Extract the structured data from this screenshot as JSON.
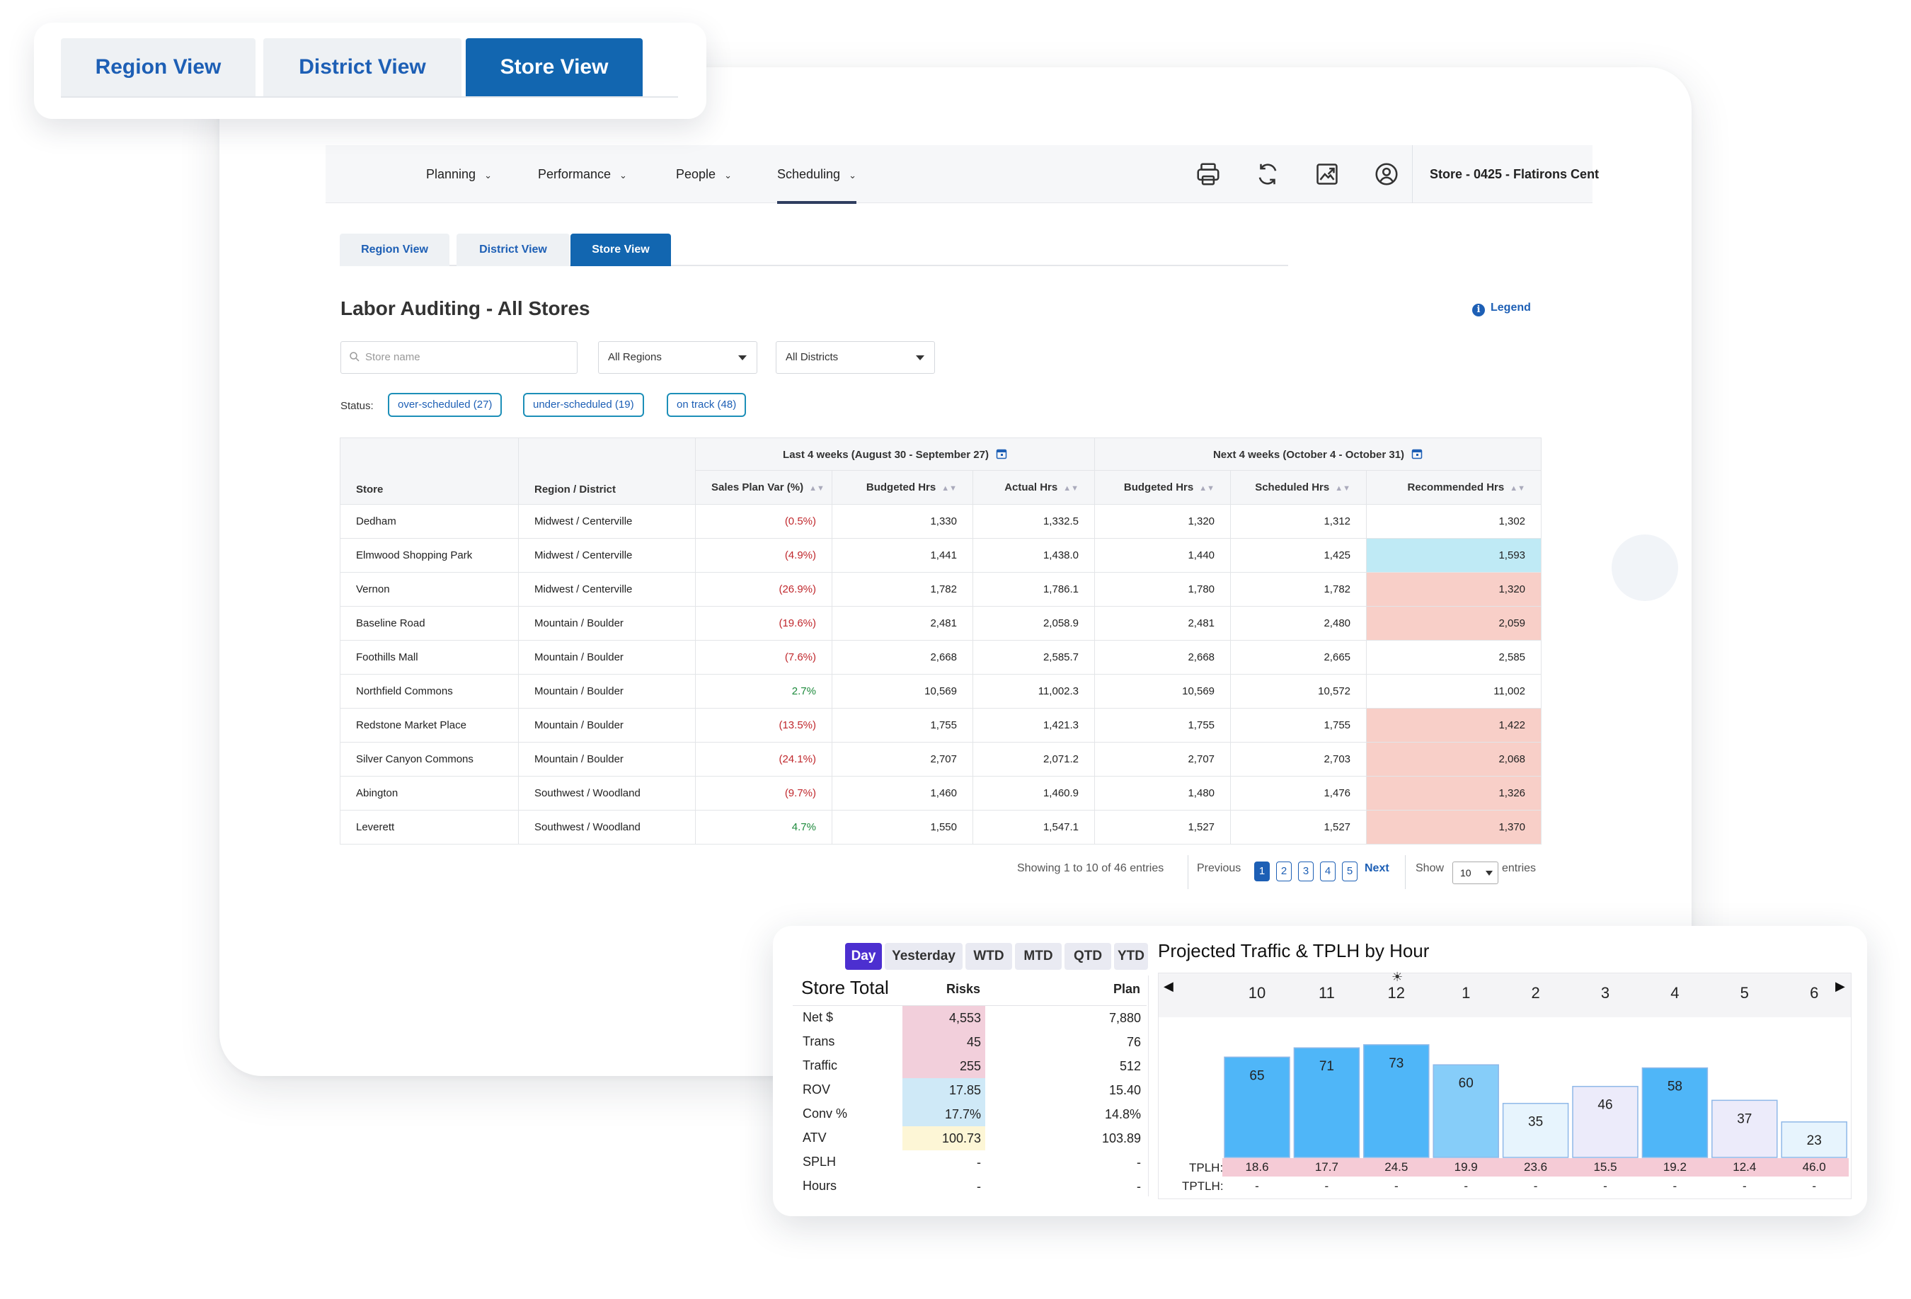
{
  "top_tabs": [
    "Region View",
    "District View",
    "Store View"
  ],
  "nav": {
    "items": [
      "Planning",
      "Performance",
      "People",
      "Scheduling"
    ],
    "active": "Scheduling",
    "icons": [
      "printer-icon",
      "refresh-icon",
      "image-export-icon",
      "user-account-icon"
    ],
    "store": "Store - 0425 - Flatirons Cent"
  },
  "view_tabs": [
    "Region View",
    "District View",
    "Store View"
  ],
  "title": "Labor Auditing - All Stores",
  "legend_label": "Legend",
  "filters": {
    "search_placeholder": "Store name",
    "region": "All Regions",
    "district": "All Districts"
  },
  "status": {
    "label": "Status:",
    "chips": [
      "over-scheduled (27)",
      "under-scheduled (19)",
      "on track (48)"
    ]
  },
  "table": {
    "group_last": "Last 4 weeks (August 30 - September 27)",
    "group_next": "Next 4 weeks (October 4 - October 31)",
    "columns": [
      "Store",
      "Region / District",
      "Sales Plan Var (%)",
      "Budgeted Hrs",
      "Actual Hrs",
      "Budgeted Hrs",
      "Scheduled Hrs",
      "Recommended Hrs"
    ],
    "rows": [
      {
        "store": "Dedham",
        "region": "Midwest / Centerville",
        "var": "(0.5%)",
        "var_sign": "neg",
        "bud": "1,330",
        "act": "1,332.5",
        "nbud": "1,320",
        "sched": "1,312",
        "rec": "1,302",
        "rec_flag": "none"
      },
      {
        "store": "Elmwood Shopping Park",
        "region": "Midwest / Centerville",
        "var": "(4.9%)",
        "var_sign": "neg",
        "bud": "1,441",
        "act": "1,438.0",
        "nbud": "1,440",
        "sched": "1,425",
        "rec": "1,593",
        "rec_flag": "blue"
      },
      {
        "store": "Vernon",
        "region": "Midwest / Centerville",
        "var": "(26.9%)",
        "var_sign": "neg",
        "bud": "1,782",
        "act": "1,786.1",
        "nbud": "1,780",
        "sched": "1,782",
        "rec": "1,320",
        "rec_flag": "red"
      },
      {
        "store": "Baseline Road",
        "region": "Mountain / Boulder",
        "var": "(19.6%)",
        "var_sign": "neg",
        "bud": "2,481",
        "act": "2,058.9",
        "nbud": "2,481",
        "sched": "2,480",
        "rec": "2,059",
        "rec_flag": "red"
      },
      {
        "store": "Foothills Mall",
        "region": "Mountain / Boulder",
        "var": "(7.6%)",
        "var_sign": "neg",
        "bud": "2,668",
        "act": "2,585.7",
        "nbud": "2,668",
        "sched": "2,665",
        "rec": "2,585",
        "rec_flag": "none"
      },
      {
        "store": "Northfield Commons",
        "region": "Mountain / Boulder",
        "var": "2.7%",
        "var_sign": "pos",
        "bud": "10,569",
        "act": "11,002.3",
        "nbud": "10,569",
        "sched": "10,572",
        "rec": "11,002",
        "rec_flag": "none"
      },
      {
        "store": "Redstone Market Place",
        "region": "Mountain / Boulder",
        "var": "(13.5%)",
        "var_sign": "neg",
        "bud": "1,755",
        "act": "1,421.3",
        "nbud": "1,755",
        "sched": "1,755",
        "rec": "1,422",
        "rec_flag": "red"
      },
      {
        "store": "Silver Canyon Commons",
        "region": "Mountain / Boulder",
        "var": "(24.1%)",
        "var_sign": "neg",
        "bud": "2,707",
        "act": "2,071.2",
        "nbud": "2,707",
        "sched": "2,703",
        "rec": "2,068",
        "rec_flag": "red"
      },
      {
        "store": "Abington",
        "region": "Southwest / Woodland",
        "var": "(9.7%)",
        "var_sign": "neg",
        "bud": "1,460",
        "act": "1,460.9",
        "nbud": "1,480",
        "sched": "1,476",
        "rec": "1,326",
        "rec_flag": "red"
      },
      {
        "store": "Leverett",
        "region": "Southwest / Woodland",
        "var": "4.7%",
        "var_sign": "pos",
        "bud": "1,550",
        "act": "1,547.1",
        "nbud": "1,527",
        "sched": "1,527",
        "rec": "1,370",
        "rec_flag": "red"
      }
    ]
  },
  "pagination": {
    "summary": "Showing 1 to 10 of 46 entries",
    "previous": "Previous",
    "pages": [
      "1",
      "2",
      "3",
      "4",
      "5"
    ],
    "current": "1",
    "next": "Next",
    "show": "Show",
    "page_size": "10",
    "entries": "entries"
  },
  "widget": {
    "periods": [
      "Day",
      "Yesterday",
      "WTD",
      "MTD",
      "QTD",
      "YTD"
    ],
    "active_period": "Day",
    "store_total": "Store Total",
    "risks_header": "Risks",
    "plan_header": "Plan",
    "metrics": [
      {
        "label": "Net $",
        "risk": "4,553",
        "plan": "7,880",
        "tone": "pink"
      },
      {
        "label": "Trans",
        "risk": "45",
        "plan": "76",
        "tone": "pink"
      },
      {
        "label": "Traffic",
        "risk": "255",
        "plan": "512",
        "tone": "pink"
      },
      {
        "label": "ROV",
        "risk": "17.85",
        "plan": "15.40",
        "tone": "blue"
      },
      {
        "label": "Conv %",
        "risk": "17.7%",
        "plan": "14.8%",
        "tone": "blue"
      },
      {
        "label": "ATV",
        "risk": "100.73",
        "plan": "103.89",
        "tone": "yellow"
      },
      {
        "label": "SPLH",
        "risk": "-",
        "plan": "-",
        "tone": "none"
      },
      {
        "label": "Hours",
        "risk": "-",
        "plan": "-",
        "tone": "none"
      }
    ]
  },
  "chart_data": {
    "type": "bar",
    "title": "Projected Traffic & TPLH by Hour",
    "categories": [
      "10",
      "11",
      "12",
      "1",
      "2",
      "3",
      "4",
      "5",
      "6"
    ],
    "values": [
      65,
      71,
      73,
      60,
      35,
      46,
      58,
      37,
      23
    ],
    "tones": [
      "blue",
      "blue",
      "blue",
      "light-blue",
      "pale-blue",
      "lavender",
      "blue",
      "lavender",
      "pale-blue"
    ],
    "ylim": [
      0,
      100
    ],
    "tplh_label": "TPLH:",
    "tplh": [
      "18.6",
      "17.7",
      "24.5",
      "19.9",
      "23.6",
      "15.5",
      "19.2",
      "12.4",
      "46.0"
    ],
    "tptlh_label": "TPTLH:",
    "tptlh": [
      "-",
      "-",
      "-",
      "-",
      "-",
      "-",
      "-",
      "-",
      "-"
    ]
  },
  "colors": {
    "brand_blue": "#1266b0",
    "link_blue": "#1d5fb5",
    "negative": "#c0282d",
    "positive": "#1d8a3c",
    "over_highlight": "#f8cfc8",
    "under_highlight": "#bfeaf5",
    "period_active": "#4c2fd0"
  }
}
